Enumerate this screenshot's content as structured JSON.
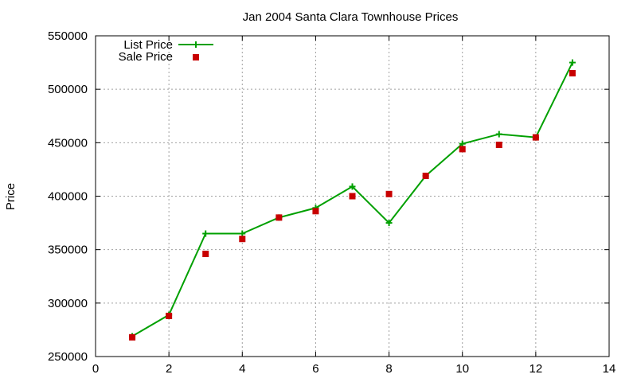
{
  "chart_data": {
    "type": "line",
    "title": "Jan 2004 Santa Clara Townhouse Prices",
    "xlabel": "",
    "ylabel": "Price",
    "xlim": [
      0,
      14
    ],
    "ylim": [
      250000,
      550000
    ],
    "x_ticks": [
      0,
      2,
      4,
      6,
      8,
      10,
      12,
      14
    ],
    "y_ticks": [
      250000,
      300000,
      350000,
      400000,
      450000,
      500000,
      550000
    ],
    "x_tick_labels": [
      "0",
      "2",
      "4",
      "6",
      "8",
      "10",
      "12",
      "14"
    ],
    "y_tick_labels": [
      "250000",
      "300000",
      "350000",
      "400000",
      "450000",
      "500000",
      "550000"
    ],
    "grid": true,
    "legend_position": "top-left",
    "series": [
      {
        "name": "List Price",
        "style": "line-plus",
        "color": "#00a000",
        "x": [
          1,
          2,
          3,
          4,
          5,
          6,
          7,
          8,
          9,
          10,
          11,
          12,
          13
        ],
        "y": [
          269000,
          289000,
          365000,
          365000,
          380000,
          389000,
          409000,
          375000,
          419000,
          449000,
          458000,
          455000,
          525000
        ]
      },
      {
        "name": "Sale Price",
        "style": "square",
        "color": "#c80000",
        "x": [
          1,
          2,
          3,
          4,
          5,
          6,
          7,
          8,
          9,
          10,
          11,
          12,
          13
        ],
        "y": [
          268000,
          288000,
          346000,
          360000,
          380000,
          386000,
          400000,
          402000,
          419000,
          444000,
          448000,
          455000,
          515000
        ]
      }
    ]
  }
}
